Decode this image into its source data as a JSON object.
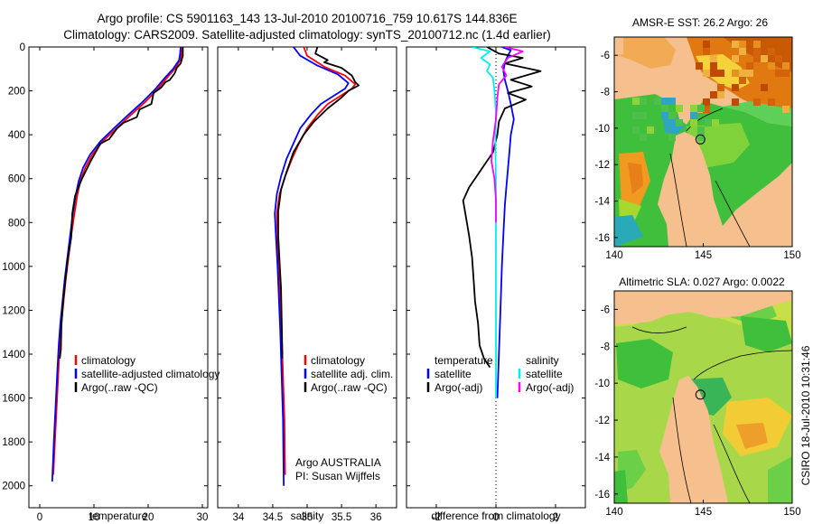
{
  "header": {
    "line1": "Argo profile: CS 5901163_143 13-Jul-2010 20100716_759 10.617S 144.836E",
    "line2": "Climatology: CARS2009. Satellite-adjusted climatology: synTS_20100712.nc (1.4d earlier)"
  },
  "colors": {
    "climatology": "#ff0000",
    "satellite": "#0000ff",
    "argo": "#000000",
    "sal_satellite": "#00eeee",
    "sal_argo": "#ff00ff",
    "land": "#f5c08e"
  },
  "chart_data": [
    {
      "type": "line",
      "name": "temperature",
      "xlabel": "temperature",
      "ylabel": "",
      "xlim": [
        -2,
        31
      ],
      "ylim": [
        0,
        2100
      ],
      "y_reversed": true,
      "xticks": [
        0,
        10,
        20,
        30
      ],
      "yticks": [
        0,
        200,
        400,
        600,
        800,
        1000,
        1200,
        1400,
        1600,
        1800,
        2000
      ],
      "legend": [
        "climatology",
        "satellite-adjusted climatology",
        "Argo(..raw -QC)"
      ],
      "series": [
        {
          "name": "climatology",
          "color": "#ff0000",
          "points": [
            [
              26.3,
              0
            ],
            [
              26.2,
              30
            ],
            [
              25.9,
              60
            ],
            [
              24.9,
              100
            ],
            [
              23.5,
              140
            ],
            [
              21.8,
              190
            ],
            [
              19.5,
              250
            ],
            [
              16.8,
              310
            ],
            [
              14.2,
              370
            ],
            [
              11.6,
              430
            ],
            [
              9.7,
              490
            ],
            [
              8.4,
              550
            ],
            [
              7.5,
              610
            ],
            [
              6.9,
              680
            ],
            [
              6.4,
              760
            ],
            [
              5.8,
              860
            ],
            [
              5.3,
              960
            ],
            [
              4.8,
              1060
            ],
            [
              4.4,
              1160
            ],
            [
              4.0,
              1260
            ],
            [
              3.7,
              1360
            ],
            [
              3.4,
              1500
            ],
            [
              3.1,
              1650
            ],
            [
              2.8,
              1800
            ],
            [
              2.5,
              1950
            ]
          ]
        },
        {
          "name": "satellite-adjusted climatology",
          "color": "#0000ff",
          "points": [
            [
              26.0,
              0
            ],
            [
              25.9,
              30
            ],
            [
              25.7,
              60
            ],
            [
              24.6,
              100
            ],
            [
              23.1,
              140
            ],
            [
              21.4,
              190
            ],
            [
              19.0,
              250
            ],
            [
              16.3,
              310
            ],
            [
              13.7,
              370
            ],
            [
              11.2,
              430
            ],
            [
              9.3,
              490
            ],
            [
              8.0,
              550
            ],
            [
              7.2,
              610
            ],
            [
              6.6,
              680
            ],
            [
              6.1,
              760
            ],
            [
              5.6,
              860
            ],
            [
              5.1,
              960
            ],
            [
              4.6,
              1060
            ],
            [
              4.2,
              1160
            ],
            [
              3.8,
              1260
            ],
            [
              3.5,
              1360
            ],
            [
              3.2,
              1500
            ],
            [
              2.9,
              1650
            ],
            [
              2.6,
              1800
            ],
            [
              2.3,
              1980
            ]
          ]
        },
        {
          "name": "Argo(..raw -QC)",
          "color": "#000000",
          "points": [
            [
              26.4,
              0
            ],
            [
              26.4,
              40
            ],
            [
              26.0,
              75
            ],
            [
              25.3,
              95
            ],
            [
              24.9,
              120
            ],
            [
              24.0,
              150
            ],
            [
              23.2,
              160
            ],
            [
              22.4,
              185
            ],
            [
              21.0,
              210
            ],
            [
              20.6,
              260
            ],
            [
              18.4,
              285
            ],
            [
              17.9,
              320
            ],
            [
              15.5,
              345
            ],
            [
              14.3,
              370
            ],
            [
              12.8,
              420
            ],
            [
              11.2,
              440
            ],
            [
              9.4,
              520
            ],
            [
              7.8,
              600
            ],
            [
              6.5,
              680
            ],
            [
              6.0,
              760
            ],
            [
              5.8,
              870
            ],
            [
              5.2,
              960
            ],
            [
              4.7,
              1070
            ],
            [
              4.3,
              1160
            ],
            [
              4.0,
              1270
            ],
            [
              3.9,
              1380
            ],
            [
              3.7,
              1420
            ]
          ]
        }
      ]
    },
    {
      "type": "line",
      "name": "salinity",
      "xlabel": "salinity",
      "xlim": [
        33.7,
        36.3
      ],
      "ylim": [
        0,
        2100
      ],
      "y_reversed": true,
      "xticks": [
        34,
        34.5,
        35,
        35.5,
        36
      ],
      "legend": [
        "climatology",
        "satellite adj. clim.",
        "Argo(..raw -QC)"
      ],
      "series": [
        {
          "name": "climatology",
          "color": "#ff0000",
          "points": [
            [
              34.95,
              0
            ],
            [
              35.0,
              40
            ],
            [
              35.25,
              90
            ],
            [
              35.55,
              130
            ],
            [
              35.7,
              170
            ],
            [
              35.65,
              190
            ],
            [
              35.5,
              220
            ],
            [
              35.3,
              260
            ],
            [
              35.15,
              310
            ],
            [
              35.0,
              370
            ],
            [
              34.88,
              440
            ],
            [
              34.78,
              510
            ],
            [
              34.68,
              590
            ],
            [
              34.6,
              670
            ],
            [
              34.56,
              760
            ],
            [
              34.57,
              880
            ],
            [
              34.59,
              1000
            ],
            [
              34.61,
              1150
            ],
            [
              34.63,
              1300
            ],
            [
              34.65,
              1500
            ],
            [
              34.67,
              1700
            ],
            [
              34.68,
              1950
            ]
          ]
        },
        {
          "name": "satellite adj. clim.",
          "color": "#0000ff",
          "points": [
            [
              34.8,
              0
            ],
            [
              34.9,
              40
            ],
            [
              35.15,
              85
            ],
            [
              35.45,
              125
            ],
            [
              35.6,
              165
            ],
            [
              35.55,
              190
            ],
            [
              35.4,
              220
            ],
            [
              35.2,
              260
            ],
            [
              35.05,
              310
            ],
            [
              34.9,
              370
            ],
            [
              34.8,
              440
            ],
            [
              34.7,
              510
            ],
            [
              34.62,
              590
            ],
            [
              34.56,
              670
            ],
            [
              34.53,
              760
            ],
            [
              34.55,
              880
            ],
            [
              34.57,
              1000
            ],
            [
              34.59,
              1150
            ],
            [
              34.61,
              1300
            ],
            [
              34.63,
              1500
            ],
            [
              34.65,
              1700
            ],
            [
              34.66,
              2000
            ]
          ]
        },
        {
          "name": "Argo(..raw -QC)",
          "color": "#000000",
          "points": [
            [
              35.15,
              0
            ],
            [
              35.12,
              30
            ],
            [
              35.3,
              60
            ],
            [
              35.25,
              70
            ],
            [
              35.5,
              95
            ],
            [
              35.65,
              130
            ],
            [
              35.7,
              160
            ],
            [
              35.75,
              175
            ],
            [
              35.6,
              200
            ],
            [
              35.5,
              230
            ],
            [
              35.3,
              280
            ],
            [
              35.1,
              340
            ],
            [
              34.95,
              400
            ],
            [
              34.8,
              480
            ],
            [
              34.7,
              570
            ],
            [
              34.62,
              650
            ],
            [
              34.58,
              750
            ],
            [
              34.58,
              860
            ],
            [
              34.6,
              980
            ],
            [
              34.62,
              1100
            ],
            [
              34.63,
              1240
            ],
            [
              34.64,
              1420
            ]
          ]
        }
      ]
    },
    {
      "type": "line",
      "name": "difference from climatology",
      "xlabel": "difference from climatology",
      "xlim": [
        -3,
        3
      ],
      "ylim": [
        0,
        2100
      ],
      "y_reversed": true,
      "xticks": [
        -2,
        0,
        2
      ],
      "legend_temperature": {
        "header": "temperature",
        "items": [
          "satellite",
          "Argo(-adj)"
        ]
      },
      "legend_salinity": {
        "header": "salinity",
        "items": [
          "satellite",
          "Argo(-adj)"
        ]
      },
      "series": [
        {
          "name": "temperature satellite",
          "color": "#0000ff",
          "points": [
            [
              0.2,
              0
            ],
            [
              0.5,
              15
            ],
            [
              0.4,
              40
            ],
            [
              0.3,
              70
            ],
            [
              0.25,
              110
            ],
            [
              0.3,
              150
            ],
            [
              0.4,
              200
            ],
            [
              0.5,
              260
            ],
            [
              0.6,
              330
            ],
            [
              0.5,
              400
            ],
            [
              0.45,
              480
            ],
            [
              0.4,
              560
            ],
            [
              0.35,
              640
            ],
            [
              0.3,
              720
            ],
            [
              0.25,
              850
            ],
            [
              0.2,
              1000
            ],
            [
              0.15,
              1200
            ],
            [
              0.1,
              1400
            ],
            [
              0.05,
              1600
            ]
          ]
        },
        {
          "name": "temperature Argo(-adj)",
          "color": "#000000",
          "points": [
            [
              -0.3,
              0
            ],
            [
              0.1,
              30
            ],
            [
              0.9,
              50
            ],
            [
              0.3,
              75
            ],
            [
              1.5,
              110
            ],
            [
              0.5,
              150
            ],
            [
              1.2,
              180
            ],
            [
              0.4,
              210
            ],
            [
              1.0,
              240
            ],
            [
              0.3,
              280
            ],
            [
              0.1,
              340
            ],
            [
              0.05,
              400
            ],
            [
              -0.1,
              480
            ],
            [
              -0.5,
              560
            ],
            [
              -0.9,
              640
            ],
            [
              -1.1,
              700
            ],
            [
              -1.0,
              780
            ],
            [
              -0.9,
              860
            ],
            [
              -0.8,
              960
            ],
            [
              -0.75,
              1060
            ],
            [
              -0.7,
              1160
            ],
            [
              -0.6,
              1260
            ],
            [
              -0.55,
              1360
            ],
            [
              -0.4,
              1420
            ],
            [
              -0.2,
              1460
            ]
          ]
        },
        {
          "name": "salinity satellite",
          "color": "#00eeee",
          "points": [
            [
              -0.8,
              0
            ],
            [
              -0.2,
              20
            ],
            [
              -0.5,
              50
            ],
            [
              -0.2,
              80
            ],
            [
              -0.3,
              110
            ],
            [
              -0.1,
              140
            ],
            [
              -0.05,
              200
            ],
            [
              0.0,
              300
            ],
            [
              -0.02,
              450
            ],
            [
              0.0,
              600
            ],
            [
              0.0,
              800
            ],
            [
              0.0,
              1000
            ],
            [
              0.0,
              1300
            ],
            [
              0.0,
              1600
            ]
          ]
        },
        {
          "name": "salinity Argo(-adj)",
          "color": "#ff00ff",
          "points": [
            [
              0.3,
              0
            ],
            [
              0.9,
              20
            ],
            [
              0.4,
              50
            ],
            [
              0.2,
              90
            ],
            [
              0.35,
              130
            ],
            [
              0.1,
              170
            ],
            [
              0.05,
              230
            ],
            [
              0.0,
              330
            ],
            [
              -0.1,
              430
            ],
            [
              -0.15,
              520
            ],
            [
              -0.05,
              600
            ],
            [
              0.0,
              700
            ],
            [
              0.0,
              800
            ]
          ]
        }
      ],
      "annotation": ""
    }
  ],
  "annotations": {
    "agency": "Argo AUSTRALIA",
    "pi": "PI: Susan Wijffels",
    "sidebar": "CSIRO 18-Jul-2010 10:31:46"
  },
  "maps": [
    {
      "name": "sst",
      "title": "AMSR-E SST: 26.2 Argo: 26",
      "xticks": [
        140,
        145,
        150
      ],
      "yticks": [
        -6,
        -8,
        -10,
        -12,
        -14,
        -16
      ],
      "xlim": [
        140,
        150
      ],
      "ylim": [
        -16.5,
        -5
      ],
      "marker": {
        "lon": 144.836,
        "lat": -10.617
      }
    },
    {
      "name": "sla",
      "title": "Altimetric SLA: 0.027 Argo: 0.0022",
      "xticks": [
        140,
        145,
        150
      ],
      "yticks": [
        -6,
        -8,
        -10,
        -12,
        -14,
        -16
      ],
      "xlim": [
        140,
        150
      ],
      "ylim": [
        -16.5,
        -5
      ],
      "marker": {
        "lon": 144.836,
        "lat": -10.617
      }
    }
  ]
}
